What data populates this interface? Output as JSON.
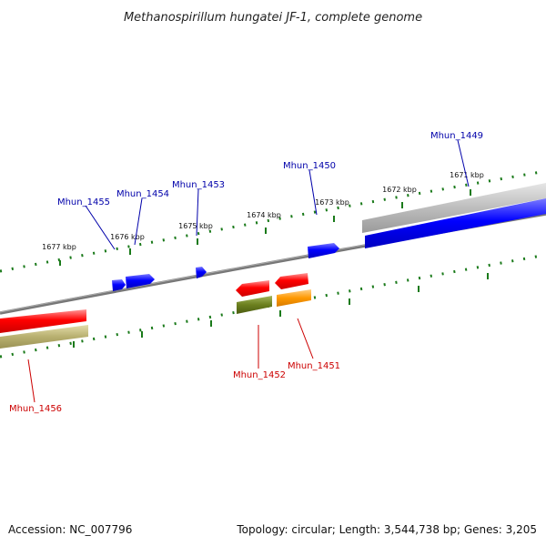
{
  "title": "Methanospirillum hungatei JF-1, complete genome",
  "accession_text": "Accession: NC_007796",
  "summary_text": "Topology: circular; Length: 3,544,738 bp; Genes: 3,205",
  "colors": {
    "forward_label": "#0000aa",
    "reverse_label": "#cc0000",
    "backbone": "#777777",
    "ticks": "#1a7a1a",
    "forward_cds": "#0000ff",
    "reverse_cds": "#ff0000",
    "olive_feature": "#b8b070",
    "dark_olive_feature": "#6b7f1e",
    "orange_feature": "#ff9900",
    "gray_feature": "#b8b8b8"
  },
  "kbp_labels": {
    "k1671": "1671 kbp",
    "k1672": "1672 kbp",
    "k1673": "1673 kbp",
    "k1674": "1674 kbp",
    "k1675": "1675 kbp",
    "k1676": "1676 kbp",
    "k1677": "1677 kbp"
  },
  "genes": {
    "mhun_1449": "Mhun_1449",
    "mhun_1450": "Mhun_1450",
    "mhun_1451": "Mhun_1451",
    "mhun_1452": "Mhun_1452",
    "mhun_1453": "Mhun_1453",
    "mhun_1454": "Mhun_1454",
    "mhun_1455": "Mhun_1455",
    "mhun_1456": "Mhun_1456"
  }
}
